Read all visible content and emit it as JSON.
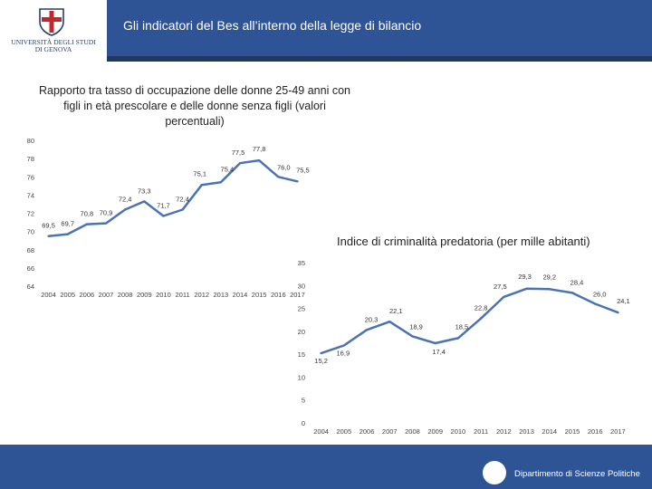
{
  "header": {
    "university_name_line1": "UNIVERSITÀ DEGLI STUDI",
    "university_name_line2": "DI GENOVA",
    "title": "Gli indicatori del Bes all’interno della legge di bilancio"
  },
  "footer": {
    "department": "Dipartimento di Scienze Politiche"
  },
  "colors": {
    "header_band": "#2f5496",
    "series_line": "#4a73b0"
  },
  "chart_data": [
    {
      "type": "line",
      "title": "Rapporto  tra tasso di occupazione delle donne 25-49 anni con figli in età prescolare e delle donne senza figli  (valori percentuali)",
      "x": [
        "2004",
        "2005",
        "2006",
        "2007",
        "2008",
        "2009",
        "2010",
        "2011",
        "2012",
        "2013",
        "2014",
        "2015",
        "2016",
        "2017"
      ],
      "series": [
        {
          "name": "Rapporto",
          "values": [
            69.5,
            69.7,
            70.8,
            70.9,
            72.4,
            73.3,
            71.7,
            72.4,
            75.1,
            75.4,
            77.5,
            77.8,
            76.0,
            75.5
          ],
          "labels": [
            "69,5",
            "69,7",
            "70,8",
            "70,9",
            "72,4",
            "73,3",
            "71,7",
            "72,4",
            "75,1",
            "75,4",
            "77,5",
            "77,8",
            "76,0",
            "75,5"
          ]
        }
      ],
      "y_ticks": [
        "64",
        "66",
        "68",
        "70",
        "72",
        "74",
        "76",
        "78",
        "80"
      ],
      "ylim": [
        64,
        80
      ]
    },
    {
      "type": "line",
      "title": "Indice di criminalità predatoria (per mille abitanti)",
      "x": [
        "2004",
        "2005",
        "2006",
        "2007",
        "2008",
        "2009",
        "2010",
        "2011",
        "2012",
        "2013",
        "2014",
        "2015",
        "2016",
        "2017"
      ],
      "series": [
        {
          "name": "Indice",
          "values": [
            15.2,
            16.9,
            20.3,
            22.1,
            18.9,
            17.4,
            18.5,
            22.8,
            27.5,
            29.3,
            29.2,
            28.4,
            26.0,
            24.1
          ],
          "labels": [
            "15,2",
            "16,9",
            "20,3",
            "22,1",
            "18,9",
            "17,4",
            "18,5",
            "22,8",
            "27,5",
            "29,3",
            "29,2",
            "28,4",
            "26,0",
            "24,1"
          ]
        }
      ],
      "y_ticks": [
        "0",
        "5",
        "10",
        "15",
        "20",
        "25",
        "30",
        "35"
      ],
      "ylim": [
        0,
        35
      ]
    }
  ]
}
